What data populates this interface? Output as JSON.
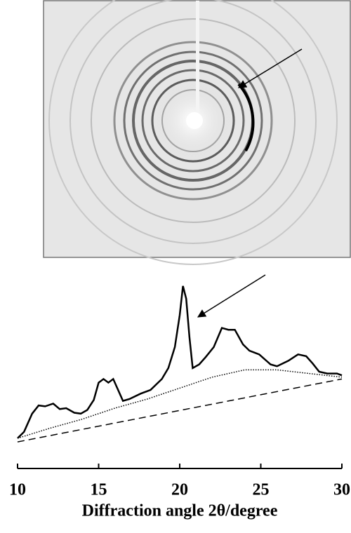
{
  "chart_data": {
    "type": "line",
    "xlabel": "Diffraction angle 2θ/degree",
    "xlim": [
      10,
      30
    ],
    "xticks": [
      10,
      15,
      20,
      25,
      30
    ],
    "ylim": [
      0,
      100
    ],
    "series": [
      {
        "color": "#000000",
        "style": "solid",
        "x": [
          10,
          10.4,
          10.9,
          11.3,
          11.7,
          12.2,
          12.6,
          13.0,
          13.5,
          13.9,
          14.3,
          14.7,
          15.0,
          15.3,
          15.6,
          15.9,
          16.2,
          16.5,
          16.9,
          17.6,
          18.2,
          18.9,
          19.3,
          19.7,
          20.0,
          20.2,
          20.4,
          20.6,
          20.8,
          21.2,
          21.6,
          22.1,
          22.6,
          23.0,
          23.4,
          23.9,
          24.3,
          24.9,
          25.6,
          26.0,
          26.7,
          27.3,
          27.8,
          28.2,
          28.6,
          29.1,
          29.7,
          30
        ],
        "values": [
          13.5,
          17,
          27,
          31.5,
          31,
          32.5,
          29.5,
          30,
          27.5,
          27,
          29,
          34.5,
          44,
          46,
          44,
          46,
          40,
          34,
          35,
          38,
          40,
          46,
          52,
          63.5,
          81,
          97,
          90,
          69,
          52,
          54,
          58,
          63.5,
          74,
          73,
          73,
          65,
          61.5,
          59.5,
          54,
          53,
          56,
          59.5,
          58.5,
          54.5,
          50,
          49,
          49,
          48
        ]
      },
      {
        "color": "#000000",
        "style": "dotted",
        "x": [
          10,
          12,
          14,
          16,
          18,
          20,
          22,
          24,
          26,
          28,
          30
        ],
        "values": [
          13.5,
          19,
          24,
          30,
          35,
          41,
          47,
          51,
          51,
          49,
          47
        ]
      },
      {
        "color": "#000000",
        "style": "dashed",
        "x": [
          10,
          30
        ],
        "values": [
          11.5,
          46
        ]
      }
    ]
  }
}
